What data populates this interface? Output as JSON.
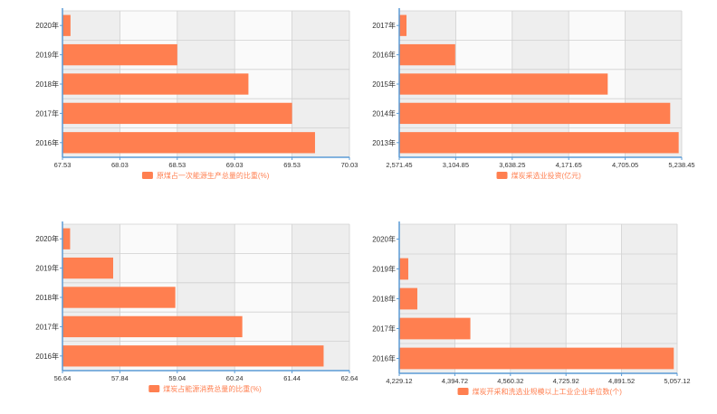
{
  "colors": {
    "bar": "#ff7f50",
    "band_dark": "#eeeeee",
    "band_light": "#fafafa",
    "grid": "#d0d0d0",
    "axis": "#5b9bd5",
    "label_text": "#333333",
    "legend_text": "#ff7f50"
  },
  "chart_data": [
    {
      "type": "bar",
      "orientation": "horizontal",
      "categories": [
        "2020年",
        "2019年",
        "2018年",
        "2017年",
        "2016年"
      ],
      "values": [
        67.6,
        68.53,
        69.15,
        69.53,
        69.73
      ],
      "x_ticks": [
        "67.53",
        "68.03",
        "68.53",
        "69.03",
        "69.53",
        "70.03"
      ],
      "xlim": [
        67.53,
        70.03
      ],
      "series_name": "原煤占一次能源生产总量的比重(%)",
      "legend_position": "bottom",
      "grid": true
    },
    {
      "type": "bar",
      "orientation": "horizontal",
      "categories": [
        "2017年",
        "2016年",
        "2015年",
        "2014年",
        "2013年"
      ],
      "values": [
        2640,
        3100,
        4540,
        5130,
        5210
      ],
      "x_ticks": [
        "2,571.45",
        "3,104.85",
        "3,638.25",
        "4,171.65",
        "4,705.05",
        "5,238.45"
      ],
      "xlim": [
        2571.45,
        5238.45
      ],
      "series_name": "煤炭采选业投资(亿元)",
      "legend_position": "bottom",
      "grid": true
    },
    {
      "type": "bar",
      "orientation": "horizontal",
      "categories": [
        "2020年",
        "2019年",
        "2018年",
        "2017年",
        "2016年"
      ],
      "values": [
        56.8,
        57.7,
        59.0,
        60.4,
        62.1
      ],
      "x_ticks": [
        "56.64",
        "57.84",
        "59.04",
        "60.24",
        "61.44",
        "62.64"
      ],
      "xlim": [
        56.64,
        62.64
      ],
      "series_name": "煤炭占能源消费总量的比重(%)",
      "legend_position": "bottom",
      "grid": true
    },
    {
      "type": "bar",
      "orientation": "horizontal",
      "categories": [
        "2020年",
        "2019年",
        "2018年",
        "2017年",
        "2016年"
      ],
      "values": [
        4229,
        4256,
        4283,
        4441,
        5047
      ],
      "x_ticks": [
        "4,229.12",
        "4,394.72",
        "4,560.32",
        "4,725.92",
        "4,891.52",
        "5,057.12"
      ],
      "xlim": [
        4229.12,
        5057.12
      ],
      "series_name": "煤炭开采和洗选业规模以上工业企业单位数(个)",
      "legend_position": "bottom",
      "grid": true
    }
  ]
}
